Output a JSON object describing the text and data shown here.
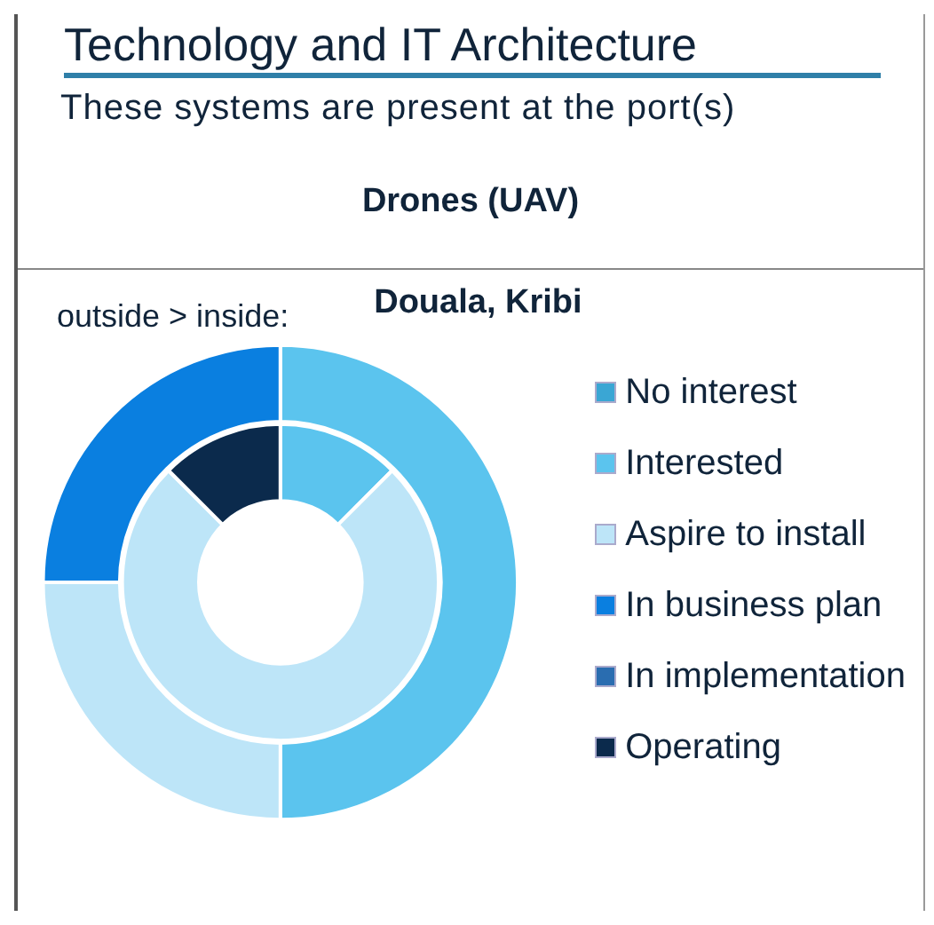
{
  "chart_data": {
    "type": "donut",
    "title": "Technology and IT Architecture",
    "subtitle": "These systems are present at the port(s)",
    "annotations": [
      "Drones (UAV)",
      "outside > inside:",
      "Douala, Kribi"
    ],
    "categories": [
      "No interest",
      "Interested",
      "Aspire to install",
      "In business plan",
      "In implementation",
      "Operating"
    ],
    "colors": [
      "#3aa6d4",
      "#5bc4ee",
      "#bde5f8",
      "#0a7fe0",
      "#2a6db0",
      "#0b2a4c"
    ],
    "series": [
      {
        "values": [
          null,
          50,
          25,
          25,
          null,
          null
        ]
      },
      {
        "values": [
          null,
          12.5,
          75,
          null,
          null,
          12.5
        ]
      }
    ],
    "legend": "right"
  }
}
